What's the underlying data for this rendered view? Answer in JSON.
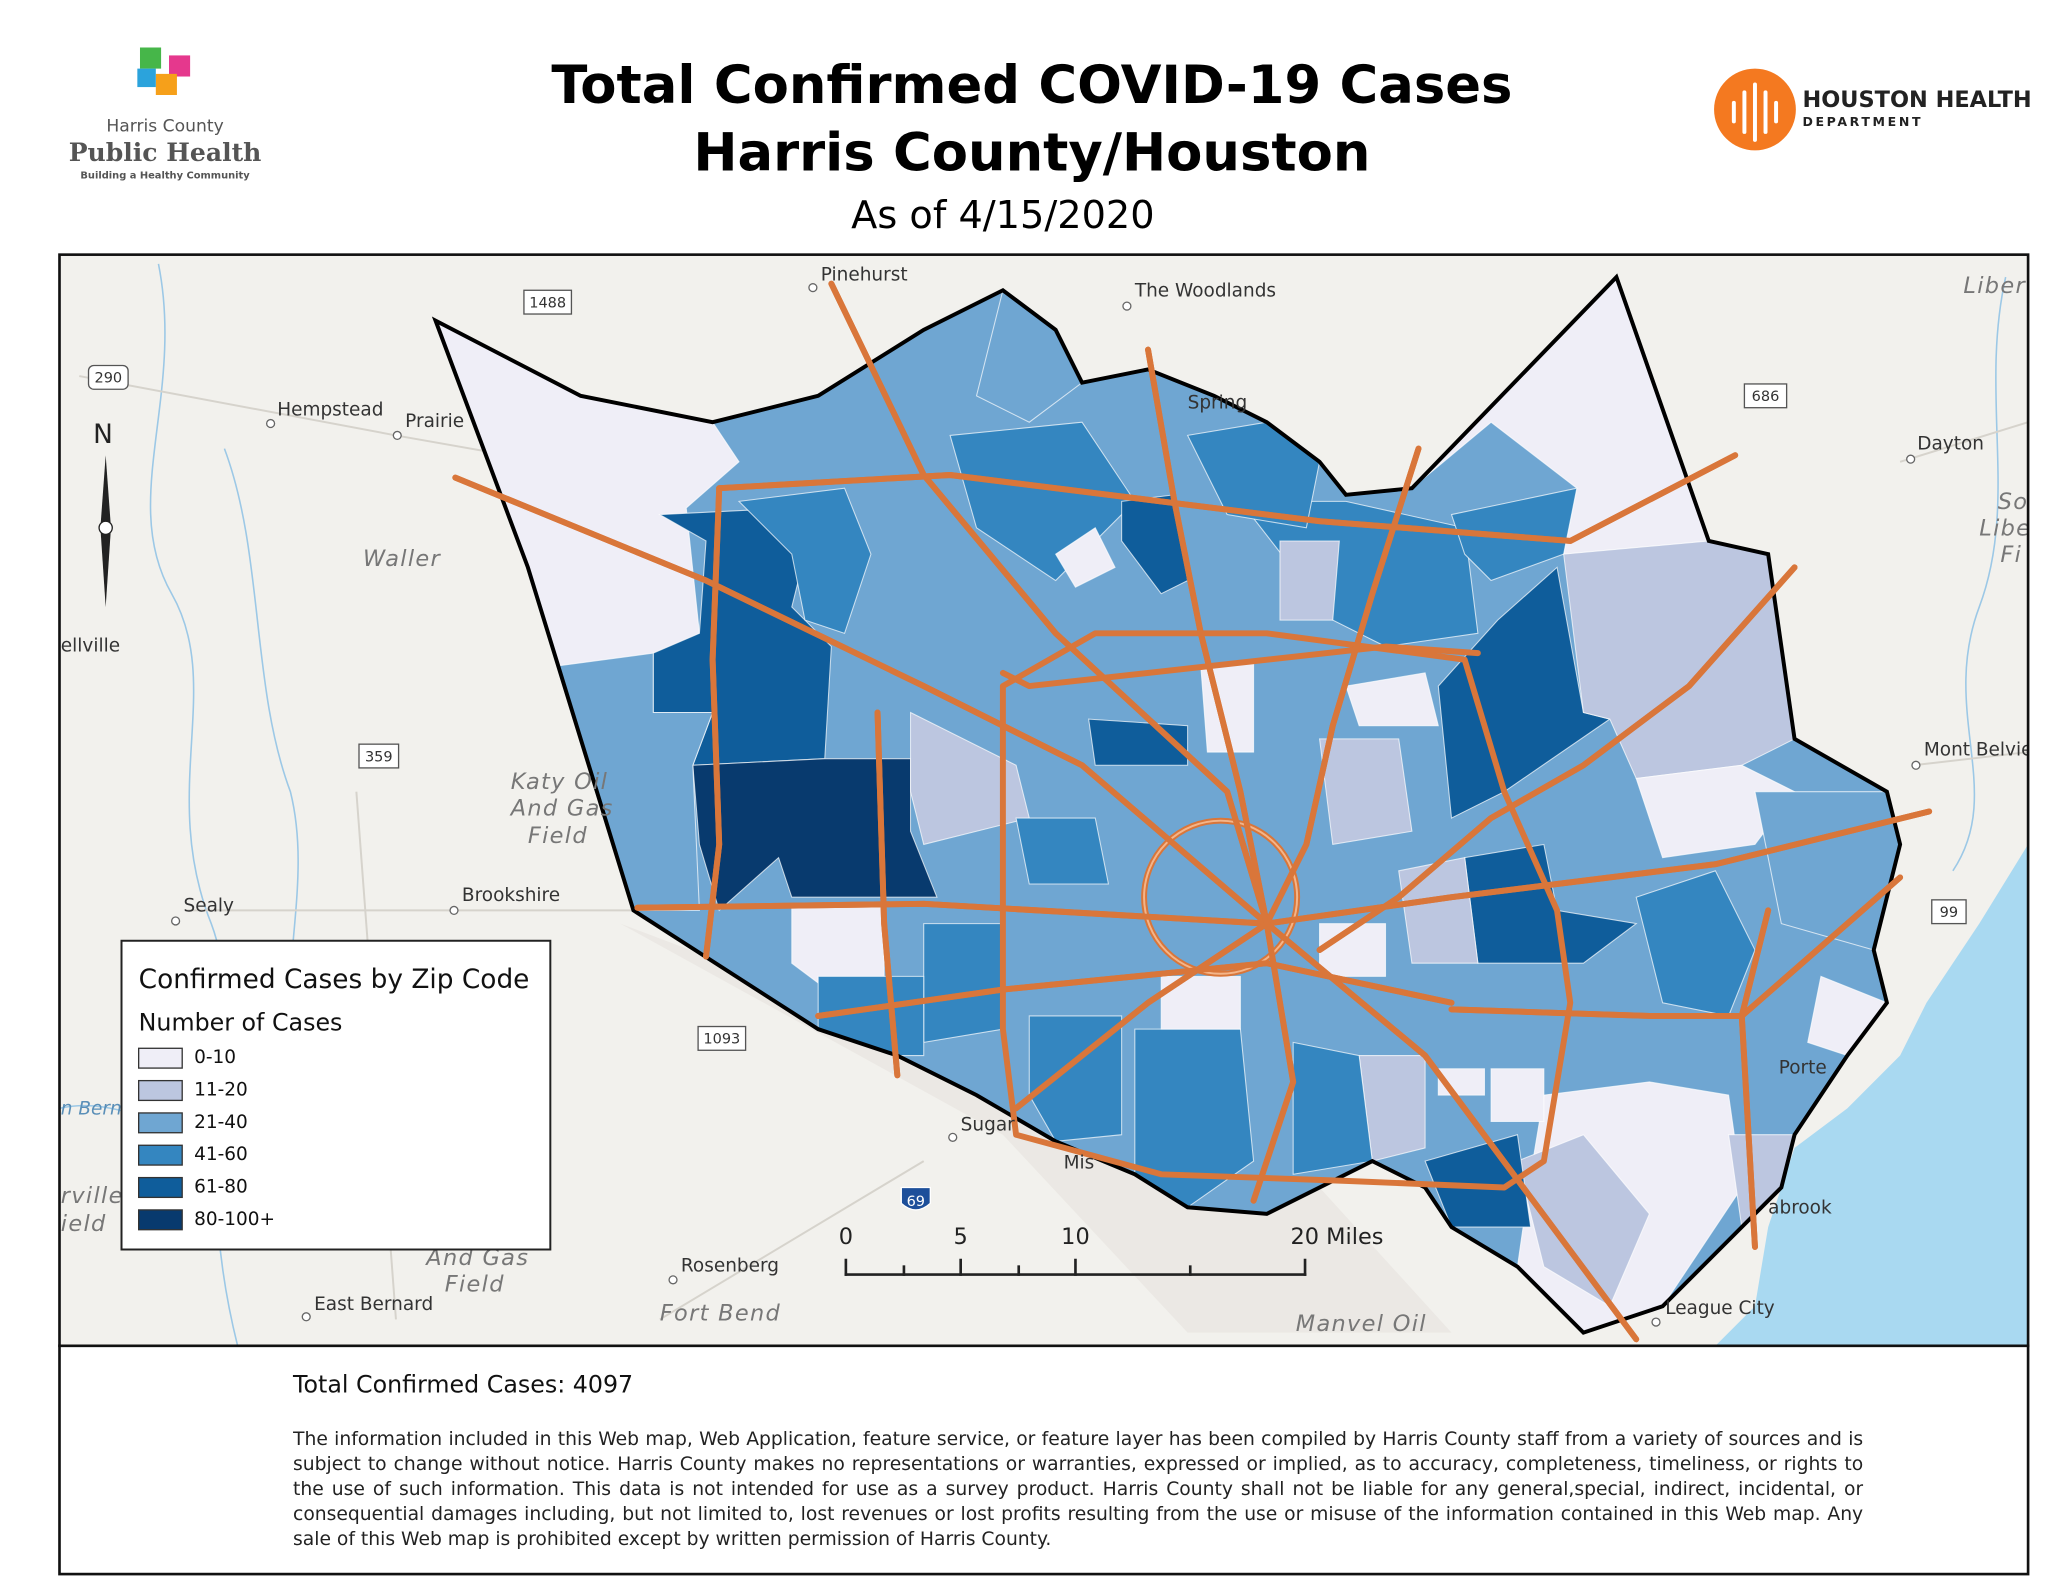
{
  "header": {
    "logo_left": {
      "line1": "Harris County",
      "line2": "Public Health",
      "tagline": "Building a Healthy Community"
    },
    "title_line1": "Total Confirmed COVID-19 Cases",
    "title_line2": "Harris County/Houston",
    "date": "As of 4/15/2020",
    "logo_right": {
      "line1": "HOUSTON HEALTH",
      "line2": "DEPARTMENT"
    }
  },
  "map": {
    "places": [
      "Pinehurst",
      "The Woodlands",
      "Spring",
      "Hempstead",
      "Prairie",
      "Waller",
      "ellville",
      "Katy Oil",
      "And Gas",
      "Field",
      "Brookshire",
      "Sealy",
      "Dayton",
      "Mont Belvie",
      "Liber",
      "So",
      "Liber",
      "Fi",
      "Porte",
      "abrook",
      "League City",
      "Rosenberg",
      "East Bernard",
      "Fort Bend",
      "Manvel Oil",
      "Sugar",
      "Mis",
      "And Gas",
      "Field",
      "rville",
      "ield",
      "n Berna"
    ],
    "shields": [
      "290",
      "1488",
      "686",
      "359",
      "1093",
      "99",
      "69"
    ],
    "north": "N",
    "scale": [
      "0",
      "5",
      "10",
      "20 Miles"
    ]
  },
  "legend": {
    "title": "Confirmed Cases by Zip Code",
    "subtitle": "Number of Cases",
    "classes": [
      {
        "label": "0-10",
        "color": "#efeef7"
      },
      {
        "label": "11-20",
        "color": "#bcc6e0"
      },
      {
        "label": "21-40",
        "color": "#6fa6d2"
      },
      {
        "label": "41-60",
        "color": "#3486c0"
      },
      {
        "label": "61-80",
        "color": "#0f5d9b"
      },
      {
        "label": "80-100+",
        "color": "#083a6e"
      }
    ]
  },
  "footer": {
    "total": {
      "label": "Total Confirmed Cases:",
      "value": 4097
    },
    "disclaimer": "The information included in this Web map, Web Application, feature service, or feature layer has been compiled by Harris County staff from a variety of sources and is subject to change without notice. Harris County makes no representations or warranties, expressed or implied, as to accuracy, completeness, timeliness, or rights to the use of such information. This data is not intended for use as a survey product. Harris County shall not be liable for any general,special, indirect, incidental, or consequential damages including, but not limited to, lost revenues or lost profits resulting from the use or misuse of the information contained in this Web map. Any sale of this Web map is prohibited except by written permission of Harris County."
  }
}
